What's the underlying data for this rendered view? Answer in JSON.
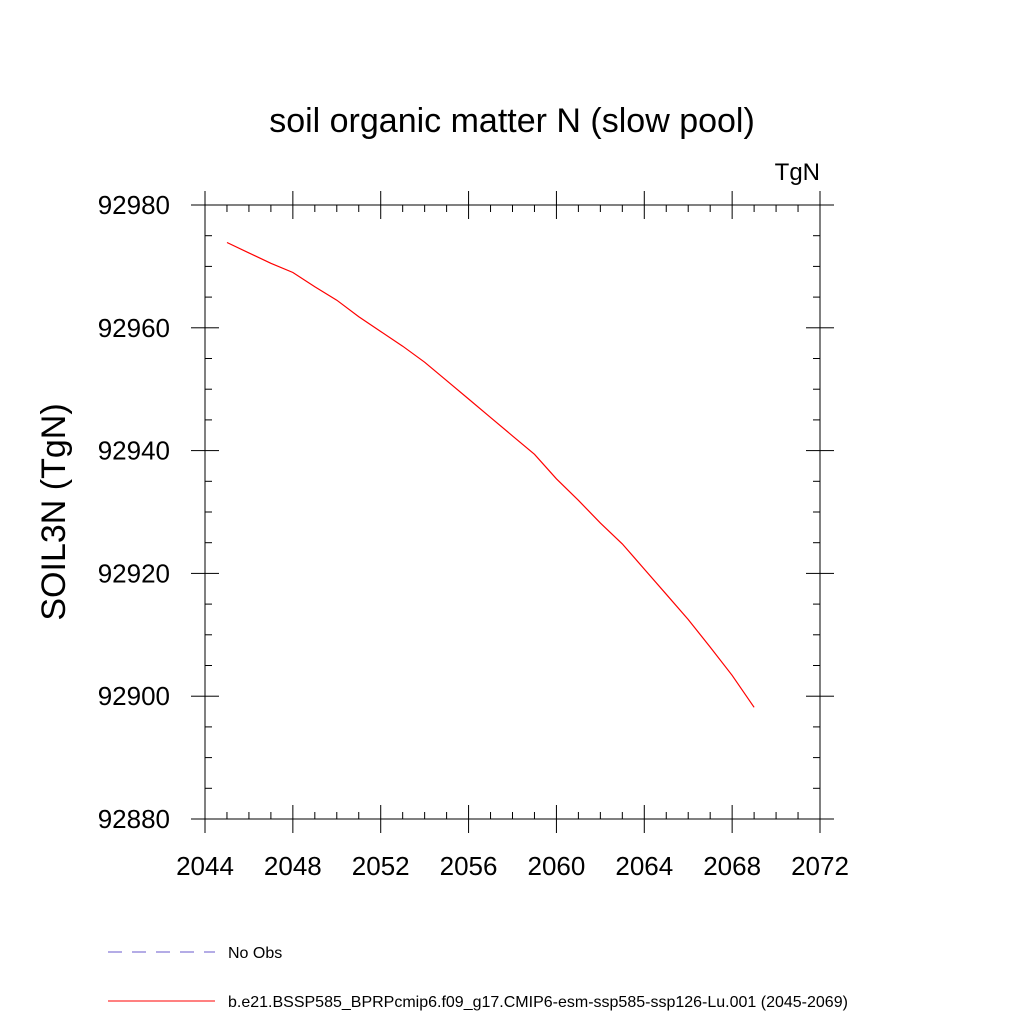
{
  "chart_data": {
    "type": "line",
    "title": "soil organic matter N (slow pool)",
    "units_label": "TgN",
    "xlabel": "",
    "ylabel": "SOIL3N  (TgN)",
    "xlim": [
      2044,
      2072
    ],
    "ylim": [
      92880,
      92980
    ],
    "x_ticks": [
      2044,
      2048,
      2052,
      2056,
      2060,
      2064,
      2068,
      2072
    ],
    "y_ticks": [
      92880,
      92900,
      92920,
      92940,
      92960,
      92980
    ],
    "grid": false,
    "legend_position": "bottom",
    "series": [
      {
        "name": "No Obs",
        "color": "#6a5acd",
        "style": "dashed",
        "x": [],
        "y": []
      },
      {
        "name": "b.e21.BSSP585_BPRPcmip6.f09_g17.CMIP6-esm-ssp585-ssp126-Lu.001 (2045-2069)",
        "color": "#ff0000",
        "style": "solid",
        "x": [
          2045,
          2046,
          2047,
          2048,
          2049,
          2050,
          2051,
          2052,
          2053,
          2054,
          2055,
          2056,
          2057,
          2058,
          2059,
          2060,
          2061,
          2062,
          2063,
          2064,
          2065,
          2066,
          2067,
          2068,
          2069
        ],
        "y": [
          92973.9,
          92972.2,
          92970.5,
          92969.0,
          92966.7,
          92964.5,
          92961.8,
          92959.4,
          92957.0,
          92954.4,
          92951.4,
          92948.4,
          92945.4,
          92942.4,
          92939.4,
          92935.4,
          92931.9,
          92928.2,
          92924.8,
          92920.7,
          92916.6,
          92912.5,
          92908.0,
          92903.4,
          92898.2
        ]
      }
    ]
  }
}
